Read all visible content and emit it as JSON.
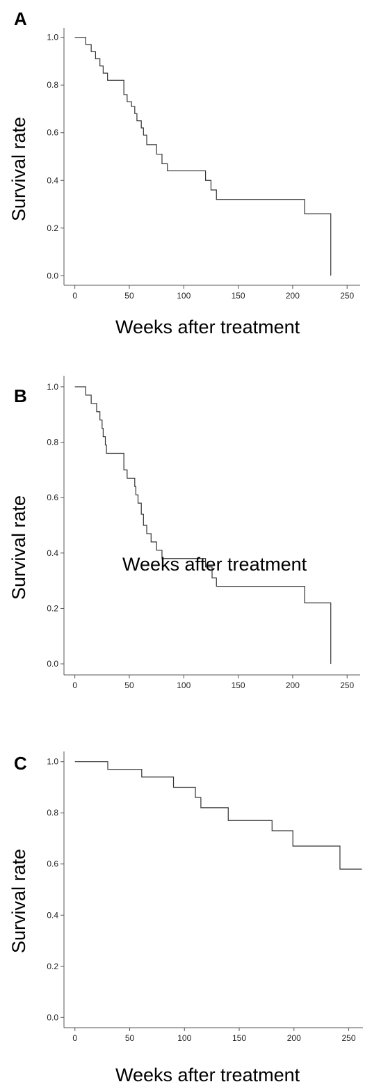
{
  "chart_data": [
    {
      "panel": "A",
      "type": "line",
      "xlabel": "Weeks after treatment",
      "ylabel": "Survival rate",
      "xlim": [
        -10,
        262
      ],
      "ylim": [
        -0.04,
        1.04
      ],
      "xticks": [
        0,
        50,
        100,
        150,
        200,
        250
      ],
      "yticks": [
        0.0,
        0.2,
        0.4,
        0.6,
        0.8,
        1.0
      ],
      "series": [
        {
          "x": [
            0,
            10,
            15,
            19,
            23,
            26,
            30,
            45,
            48,
            52,
            55,
            57,
            61,
            63,
            66,
            75,
            80,
            85,
            115,
            120,
            125,
            130,
            195,
            211,
            235,
            235
          ],
          "y": [
            1.0,
            0.97,
            0.94,
            0.91,
            0.88,
            0.85,
            0.82,
            0.76,
            0.73,
            0.71,
            0.68,
            0.65,
            0.62,
            0.59,
            0.55,
            0.51,
            0.47,
            0.44,
            0.44,
            0.4,
            0.36,
            0.32,
            0.32,
            0.26,
            0.17,
            0.0
          ]
        }
      ],
      "style": "step"
    },
    {
      "panel": "B",
      "type": "line",
      "xlabel": "Weeks after treatment",
      "ylabel": "Survival rate",
      "xlim": [
        -10,
        262
      ],
      "ylim": [
        -0.04,
        1.04
      ],
      "xticks": [
        0,
        50,
        100,
        150,
        200,
        250
      ],
      "yticks": [
        0.0,
        0.2,
        0.4,
        0.6,
        0.8,
        1.0
      ],
      "series": [
        {
          "x": [
            0,
            10,
            15,
            20,
            23,
            25,
            26,
            28,
            29,
            45,
            48,
            55,
            56,
            58,
            61,
            63,
            66,
            70,
            75,
            80,
            115,
            120,
            126,
            130,
            195,
            211,
            235,
            235
          ],
          "y": [
            1.0,
            0.97,
            0.94,
            0.91,
            0.88,
            0.85,
            0.82,
            0.79,
            0.76,
            0.7,
            0.67,
            0.64,
            0.61,
            0.58,
            0.54,
            0.5,
            0.47,
            0.44,
            0.41,
            0.38,
            0.38,
            0.35,
            0.31,
            0.28,
            0.28,
            0.22,
            0.15,
            0.0
          ]
        }
      ],
      "style": "step"
    },
    {
      "panel": "C",
      "type": "line",
      "xlabel": "Weeks after treatment",
      "ylabel": "Survival rate",
      "xlim": [
        -10,
        263
      ],
      "ylim": [
        -0.04,
        1.04
      ],
      "xticks": [
        0,
        50,
        100,
        150,
        200,
        250
      ],
      "yticks": [
        0.0,
        0.2,
        0.4,
        0.6,
        0.8,
        1.0
      ],
      "series": [
        {
          "x": [
            0,
            30,
            61,
            90,
            110,
            115,
            140,
            180,
            199,
            242,
            262
          ],
          "y": [
            1.0,
            0.97,
            0.94,
            0.9,
            0.86,
            0.82,
            0.77,
            0.73,
            0.67,
            0.58,
            0.58
          ]
        }
      ],
      "style": "step"
    }
  ]
}
